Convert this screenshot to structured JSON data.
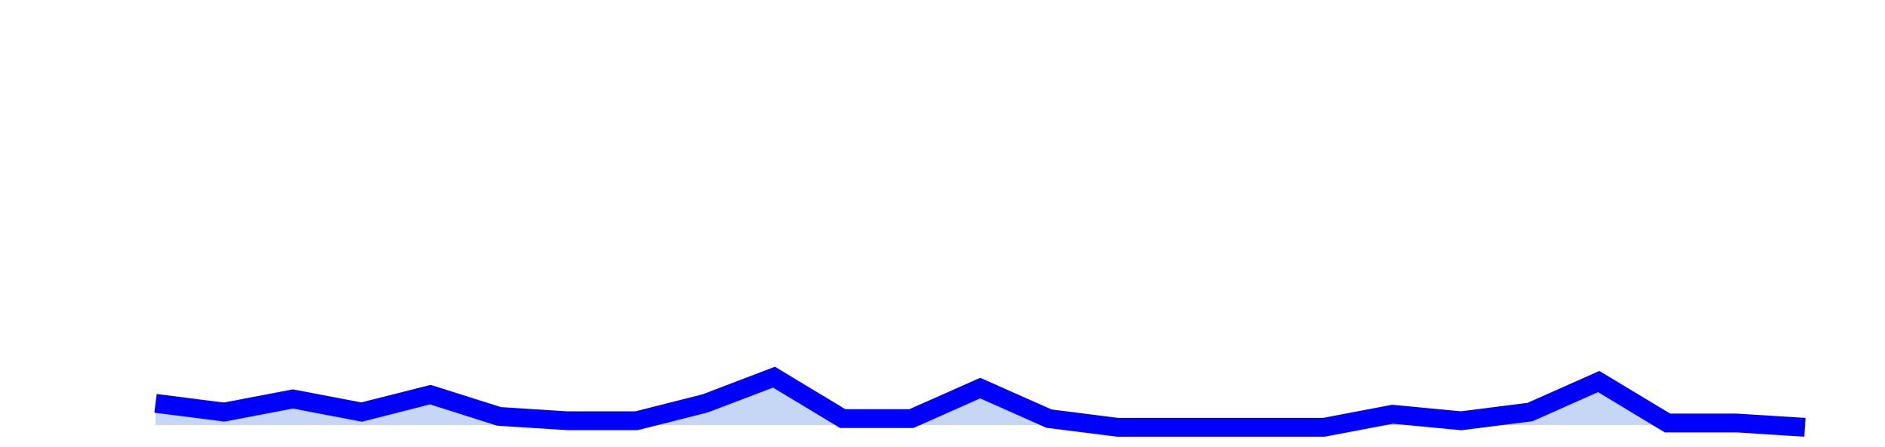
{
  "chart_data": {
    "type": "line",
    "x": [
      1,
      2,
      3,
      4,
      5,
      6,
      7,
      8,
      9,
      10,
      11,
      12,
      13,
      14,
      15,
      16,
      17,
      18,
      19,
      20,
      21,
      22,
      23,
      24,
      25
    ],
    "series": [
      {
        "values": [
          7.5,
          5.5,
          8.5,
          5.5,
          9.5,
          4.5,
          3.5,
          3.5,
          7.5,
          13.5,
          4.0,
          4.0,
          11.0,
          4.0,
          2.0,
          2.0,
          2.0,
          2.0,
          5.0,
          3.5,
          5.5,
          12.5,
          3.0,
          3.0,
          2.0
        ],
        "color": "#0000ff",
        "fill": "#c5d7f5"
      }
    ],
    "ylim": [
      0,
      100
    ],
    "grid": false,
    "legend": "none"
  }
}
